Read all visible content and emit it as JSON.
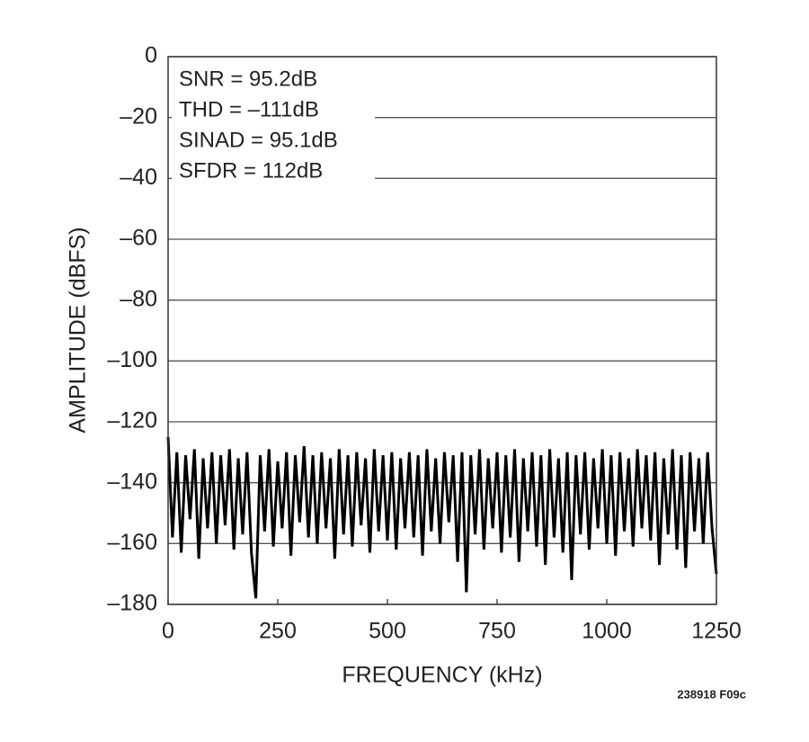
{
  "chart_data": {
    "type": "line",
    "ylabel": "AMPLITUDE (dBFS)",
    "xlabel": "FREQUENCY (kHz)",
    "annotations": [
      "SNR = 95.2dB",
      "THD = –111dB",
      "SINAD = 95.1dB",
      "SFDR = 112dB"
    ],
    "figure_code": "238918 F09c",
    "xlim": [
      0,
      1250
    ],
    "xticks": [
      0,
      250,
      500,
      750,
      1000,
      1250
    ],
    "ylim": [
      -180,
      0
    ],
    "yticks": [
      {
        "value": -180,
        "label": "–180"
      },
      {
        "value": -160,
        "label": "–160"
      },
      {
        "value": -140,
        "label": "–140"
      },
      {
        "value": -120,
        "label": "–120"
      },
      {
        "value": -100,
        "label": "–100"
      },
      {
        "value": -80,
        "label": "–80"
      },
      {
        "value": -60,
        "label": "–60"
      },
      {
        "value": -40,
        "label": "–40"
      },
      {
        "value": -20,
        "label": "–20"
      },
      0
    ],
    "grid": true,
    "x": [
      0,
      10,
      20,
      30,
      40,
      50,
      60,
      70,
      80,
      90,
      100,
      110,
      120,
      130,
      140,
      150,
      160,
      170,
      180,
      190,
      200,
      210,
      220,
      230,
      240,
      250,
      260,
      270,
      280,
      290,
      300,
      310,
      320,
      330,
      340,
      350,
      360,
      370,
      380,
      390,
      400,
      410,
      420,
      430,
      440,
      450,
      460,
      470,
      480,
      490,
      500,
      510,
      520,
      530,
      540,
      550,
      560,
      570,
      580,
      590,
      600,
      610,
      620,
      630,
      640,
      650,
      660,
      670,
      680,
      690,
      700,
      710,
      720,
      730,
      740,
      750,
      760,
      770,
      780,
      790,
      800,
      810,
      820,
      830,
      840,
      850,
      860,
      870,
      880,
      890,
      900,
      910,
      920,
      930,
      940,
      950,
      960,
      970,
      980,
      990,
      1000,
      1010,
      1020,
      1030,
      1040,
      1050,
      1060,
      1070,
      1080,
      1090,
      1100,
      1110,
      1120,
      1130,
      1140,
      1150,
      1160,
      1170,
      1180,
      1190,
      1200,
      1210,
      1220,
      1230,
      1240,
      1250
    ],
    "series": [
      {
        "color": "#000000",
        "values": [
          -125,
          -158,
          -130,
          -163,
          -131,
          -152,
          -129,
          -165,
          -132,
          -155,
          -130,
          -160,
          -131,
          -154,
          -129,
          -162,
          -132,
          -157,
          -130,
          -163,
          -178,
          -131,
          -156,
          -129,
          -161,
          -133,
          -155,
          -130,
          -164,
          -131,
          -153,
          -128,
          -158,
          -131,
          -160,
          -130,
          -155,
          -132,
          -165,
          -129,
          -157,
          -131,
          -161,
          -130,
          -154,
          -132,
          -163,
          -129,
          -156,
          -131,
          -159,
          -130,
          -162,
          -132,
          -155,
          -130,
          -158,
          -131,
          -164,
          -129,
          -156,
          -132,
          -160,
          -130,
          -153,
          -131,
          -166,
          -130,
          -176,
          -131,
          -157,
          -129,
          -162,
          -132,
          -155,
          -130,
          -163,
          -131,
          -158,
          -129,
          -166,
          -132,
          -156,
          -130,
          -161,
          -131,
          -167,
          -129,
          -158,
          -132,
          -163,
          -130,
          -172,
          -131,
          -157,
          -130,
          -162,
          -132,
          -155,
          -129,
          -160,
          -131,
          -164,
          -130,
          -156,
          -132,
          -161,
          -129,
          -155,
          -131,
          -159,
          -130,
          -167,
          -132,
          -157,
          -129,
          -162,
          -131,
          -168,
          -130,
          -156,
          -132,
          -160,
          -130,
          -155,
          -170
        ]
      }
    ]
  }
}
